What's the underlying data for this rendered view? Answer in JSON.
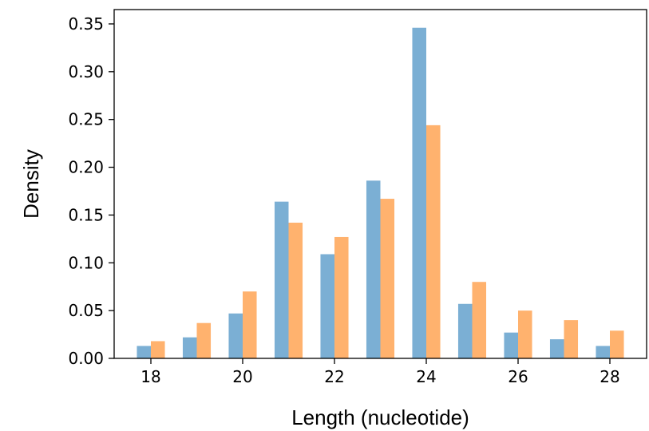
{
  "chart_data": {
    "type": "bar",
    "title": "",
    "xlabel": "Length (nucleotide)",
    "ylabel": "Density",
    "categories": [
      18,
      19,
      20,
      21,
      22,
      23,
      24,
      25,
      26,
      27,
      28
    ],
    "series": [
      {
        "color": "#7BAFD4",
        "values": [
          0.013,
          0.022,
          0.047,
          0.164,
          0.109,
          0.186,
          0.346,
          0.057,
          0.027,
          0.02,
          0.013
        ]
      },
      {
        "color": "#FFB26E",
        "values": [
          0.018,
          0.037,
          0.07,
          0.142,
          0.127,
          0.167,
          0.244,
          0.08,
          0.05,
          0.04,
          0.029
        ]
      }
    ],
    "xlim": [
      17.2,
      28.8
    ],
    "ylim": [
      0,
      0.365
    ],
    "xticks": [
      "18",
      "20",
      "22",
      "24",
      "26",
      "28"
    ],
    "yticks": [
      "0.00",
      "0.05",
      "0.10",
      "0.15",
      "0.20",
      "0.25",
      "0.30",
      "0.35"
    ],
    "grid": false,
    "legend": "none"
  }
}
